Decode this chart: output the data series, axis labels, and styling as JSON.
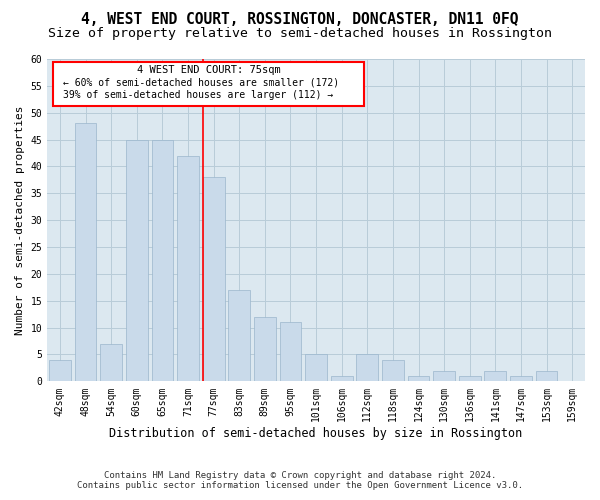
{
  "title": "4, WEST END COURT, ROSSINGTON, DONCASTER, DN11 0FQ",
  "subtitle": "Size of property relative to semi-detached houses in Rossington",
  "xlabel": "Distribution of semi-detached houses by size in Rossington",
  "ylabel": "Number of semi-detached properties",
  "categories": [
    "42sqm",
    "48sqm",
    "54sqm",
    "60sqm",
    "65sqm",
    "71sqm",
    "77sqm",
    "83sqm",
    "89sqm",
    "95sqm",
    "101sqm",
    "106sqm",
    "112sqm",
    "118sqm",
    "124sqm",
    "130sqm",
    "136sqm",
    "141sqm",
    "147sqm",
    "153sqm",
    "159sqm"
  ],
  "values": [
    4,
    48,
    7,
    45,
    45,
    42,
    38,
    17,
    12,
    11,
    5,
    1,
    5,
    4,
    1,
    2,
    1,
    2,
    1,
    2,
    0
  ],
  "bar_color": "#c9daea",
  "bar_edge_color": "#9ab5cc",
  "marker_index": 6,
  "marker_color": "red",
  "annotation_title": "4 WEST END COURT: 75sqm",
  "annotation_line1": "← 60% of semi-detached houses are smaller (172)",
  "annotation_line2": "39% of semi-detached houses are larger (112) →",
  "annotation_box_color": "white",
  "annotation_box_edge": "red",
  "ylim": [
    0,
    60
  ],
  "yticks": [
    0,
    5,
    10,
    15,
    20,
    25,
    30,
    35,
    40,
    45,
    50,
    55,
    60
  ],
  "figure_bg": "#ffffff",
  "plot_bg": "#dce8f0",
  "grid_color": "#b8ccd8",
  "footnote1": "Contains HM Land Registry data © Crown copyright and database right 2024.",
  "footnote2": "Contains public sector information licensed under the Open Government Licence v3.0.",
  "title_fontsize": 10.5,
  "subtitle_fontsize": 9.5,
  "xlabel_fontsize": 8.5,
  "ylabel_fontsize": 8,
  "tick_fontsize": 7,
  "footnote_fontsize": 6.5
}
